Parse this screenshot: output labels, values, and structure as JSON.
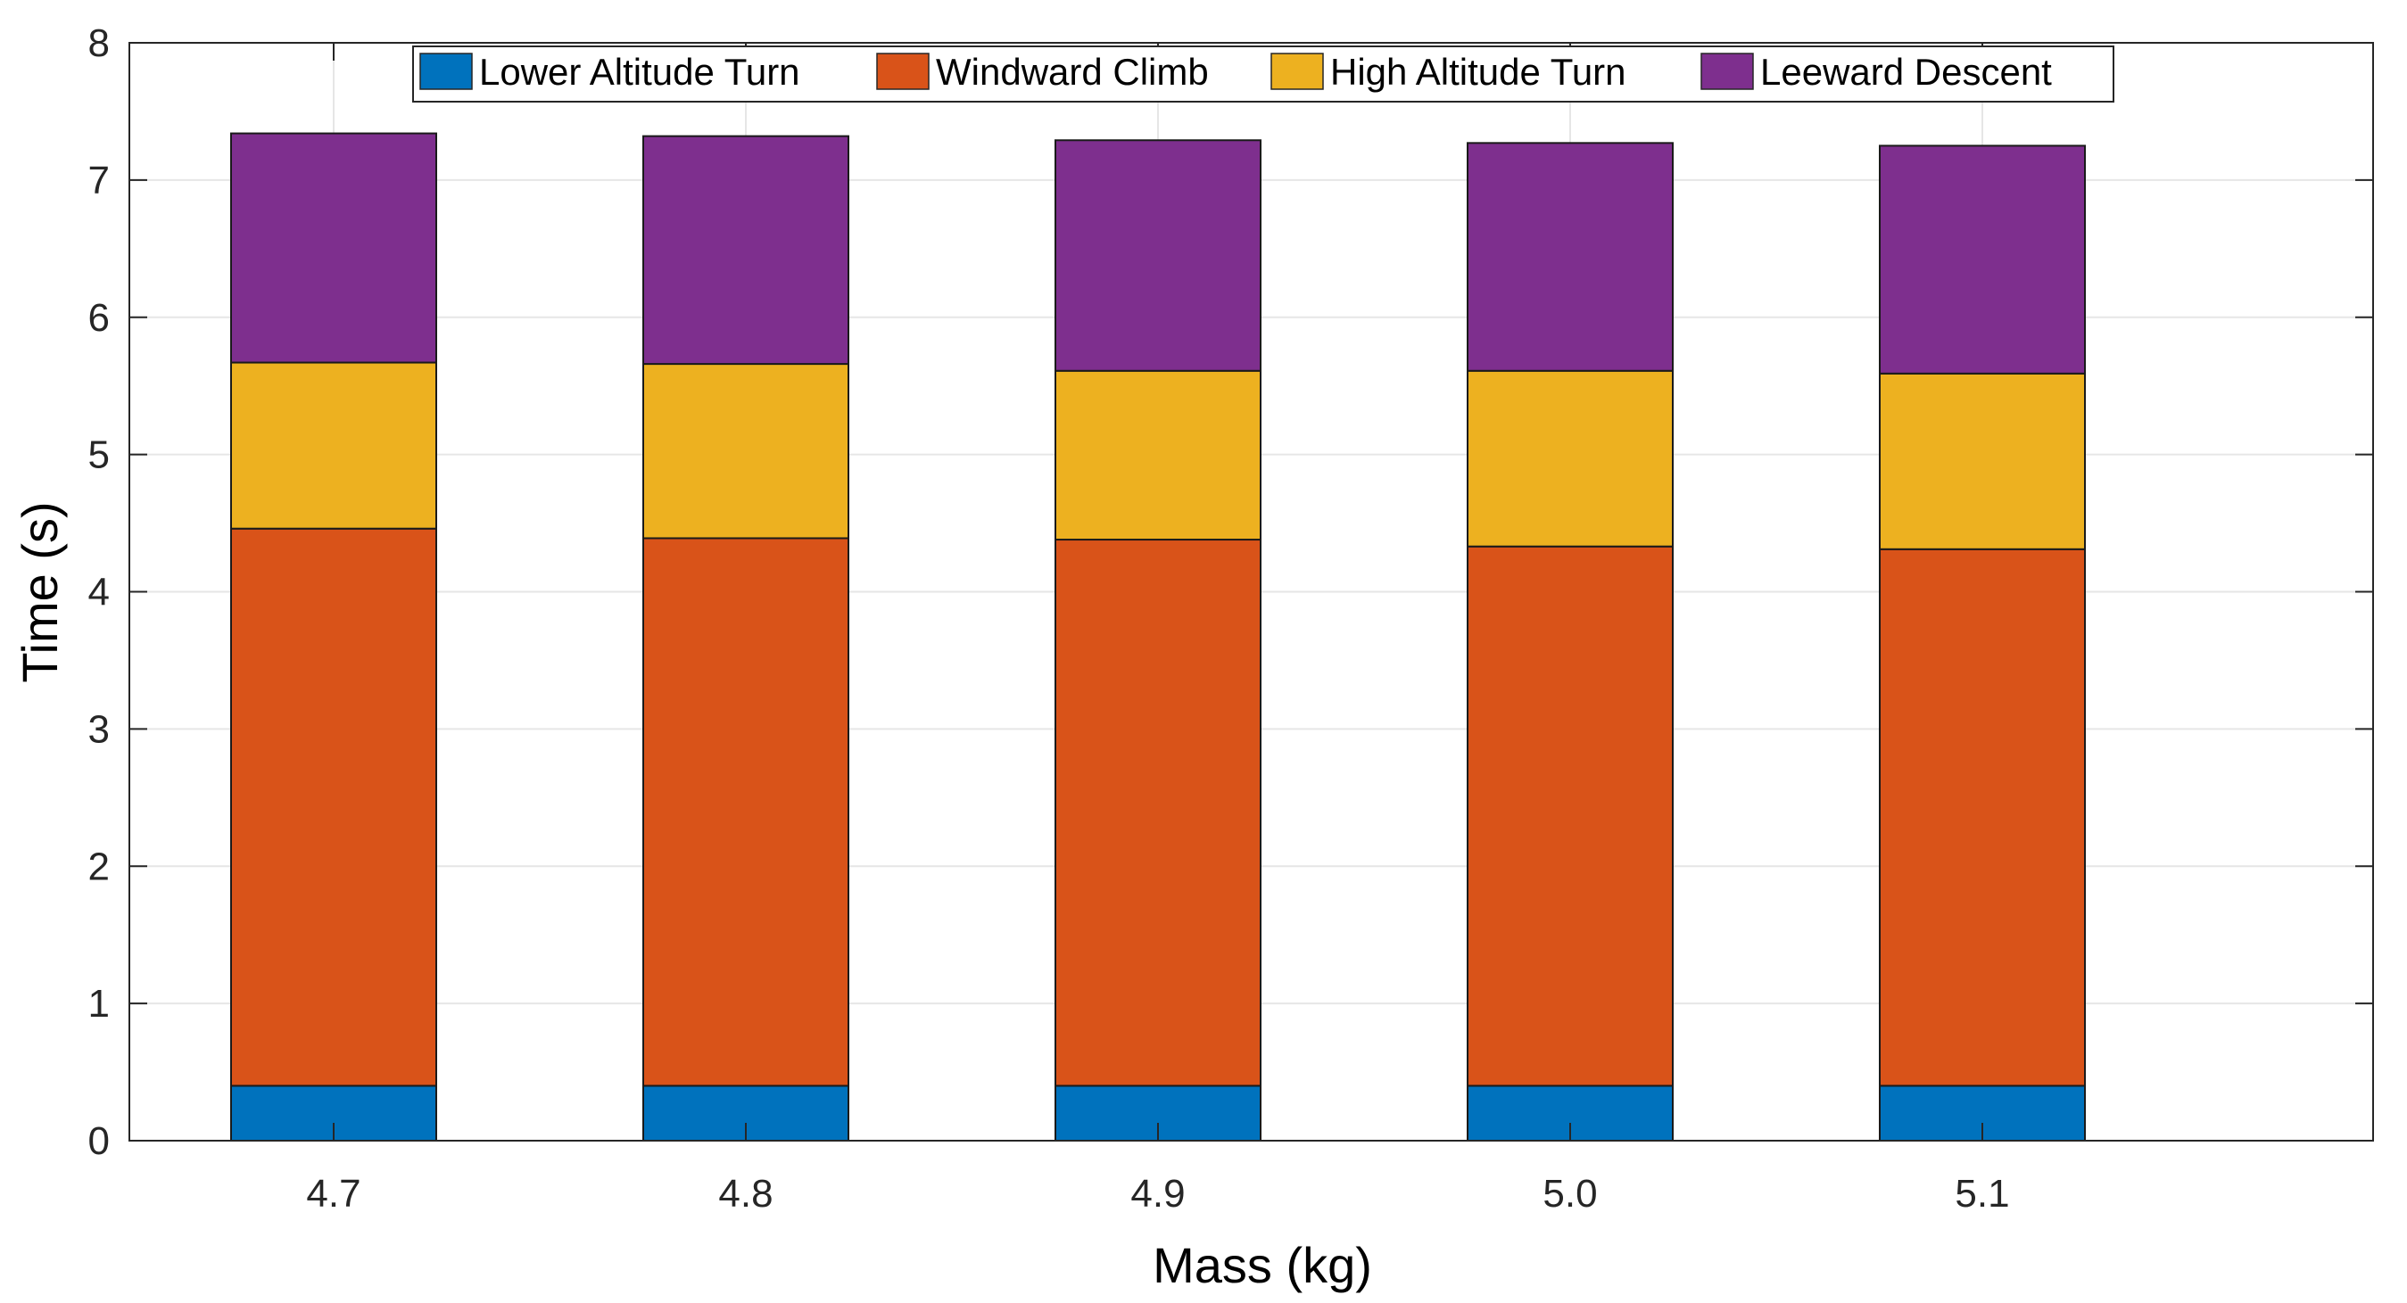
{
  "chart_data": {
    "type": "bar",
    "stacked": true,
    "title": "",
    "xlabel": "Mass (kg)",
    "ylabel": "Time (s)",
    "ylim": [
      0,
      8
    ],
    "yticks": [
      "0",
      "1",
      "2",
      "3",
      "4",
      "5",
      "6",
      "7",
      "8"
    ],
    "categories": [
      "4.7",
      "4.8",
      "4.9",
      "5.0",
      "5.1"
    ],
    "grid": true,
    "legend_position": "top",
    "series": [
      {
        "name": "Lower Altitude Turn",
        "color": "#0072BD",
        "values": [
          0.4,
          0.4,
          0.4,
          0.4,
          0.4
        ]
      },
      {
        "name": "Windward Climb",
        "color": "#D95319",
        "values": [
          4.06,
          3.99,
          3.98,
          3.93,
          3.91
        ]
      },
      {
        "name": "High Altitude Turn",
        "color": "#EDB120",
        "values": [
          1.21,
          1.27,
          1.23,
          1.28,
          1.28
        ]
      },
      {
        "name": "Leeward Descent",
        "color": "#7E2F8E",
        "values": [
          1.67,
          1.66,
          1.68,
          1.66,
          1.66
        ]
      }
    ]
  }
}
